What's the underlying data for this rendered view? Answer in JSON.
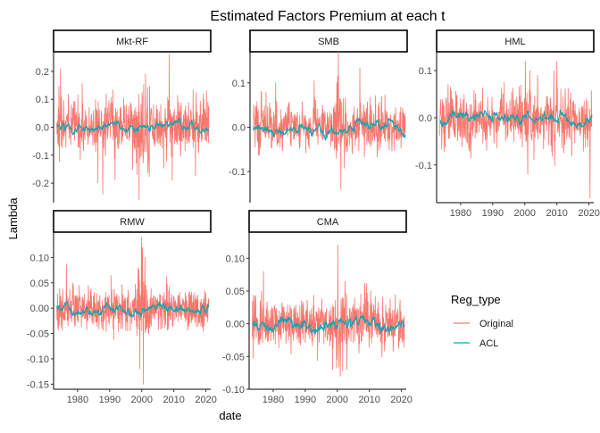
{
  "chart_data": {
    "type": "line",
    "title": "Estimated Factors Premium at each t",
    "xlabel": "date",
    "ylabel": "Lambda",
    "legend": {
      "title": "Reg_type",
      "placement": "right",
      "entries": [
        {
          "name": "Original",
          "color": "#F8766D"
        },
        {
          "name": "ACL",
          "color": "#00A9B5"
        }
      ]
    },
    "grid": false,
    "series_names": [
      "Original",
      "ACL"
    ],
    "xlim": [
      1972.5,
      2021.5
    ],
    "x_ticks": [
      1980,
      1990,
      2000,
      2010,
      2020
    ],
    "panels": [
      {
        "label": "Mkt-RF",
        "ylim": [
          -0.27,
          0.27
        ],
        "y_ticks": [
          -0.2,
          -0.1,
          0.0,
          0.1,
          0.2
        ],
        "y_tick_labels": [
          "-0.2",
          "-0.1",
          "0.0",
          "0.1",
          "0.2"
        ],
        "original": {
          "sd": 0.045,
          "spike_prob": 0.05,
          "spike_scale": 0.09,
          "phase": 0.3
        },
        "acl": {
          "sd": 0.008
        },
        "extremes": [
          [
            1987.8,
            -0.24
          ],
          [
            1999.2,
            -0.26
          ],
          [
            2008.6,
            0.26
          ],
          [
            1974.7,
            0.21
          ],
          [
            2001.2,
            0.19
          ],
          [
            2009.5,
            -0.19
          ],
          [
            2020.2,
            0.13
          ]
        ]
      },
      {
        "label": "SMB",
        "ylim": [
          -0.17,
          0.17
        ],
        "y_ticks": [
          -0.1,
          0.0,
          0.1
        ],
        "y_tick_labels": [
          "-0.1",
          "0.0",
          "0.1"
        ],
        "original": {
          "sd": 0.025,
          "spike_prob": 0.05,
          "spike_scale": 0.05,
          "phase": 1.1
        },
        "acl": {
          "sd": 0.006
        },
        "extremes": [
          [
            2000.1,
            0.17
          ],
          [
            2000.8,
            -0.14
          ],
          [
            1999.6,
            0.1
          ],
          [
            1976.0,
            0.08
          ],
          [
            1980.5,
            0.1
          ]
        ]
      },
      {
        "label": "HML",
        "ylim": [
          -0.18,
          0.14
        ],
        "y_ticks": [
          -0.1,
          0.0,
          0.1
        ],
        "y_tick_labels": [
          "-0.1",
          "0.0",
          "0.1"
        ],
        "original": {
          "sd": 0.025,
          "spike_prob": 0.05,
          "spike_scale": 0.05,
          "phase": 2.0
        },
        "acl": {
          "sd": 0.006
        },
        "extremes": [
          [
            2020.3,
            -0.17
          ],
          [
            2000.2,
            0.12
          ],
          [
            2000.9,
            -0.12
          ],
          [
            2009.1,
            0.1
          ],
          [
            2001.6,
            0.1
          ],
          [
            2004.0,
            0.09
          ]
        ]
      },
      {
        "label": "RMW",
        "ylim": [
          -0.16,
          0.15
        ],
        "y_ticks": [
          -0.15,
          -0.1,
          -0.05,
          0.0,
          0.05,
          0.1
        ],
        "y_tick_labels": [
          "-0.15",
          "-0.10",
          "-0.05",
          "0.00",
          "0.05",
          "0.10"
        ],
        "original": {
          "sd": 0.02,
          "spike_prob": 0.05,
          "spike_scale": 0.04,
          "phase": 0.7
        },
        "acl": {
          "sd": 0.005
        },
        "extremes": [
          [
            1999.9,
            0.14
          ],
          [
            2000.5,
            -0.15
          ],
          [
            2000.2,
            0.12
          ],
          [
            1999.4,
            -0.12
          ],
          [
            2001.0,
            0.1
          ]
        ]
      },
      {
        "label": "CMA",
        "ylim": [
          -0.1,
          0.14
        ],
        "y_ticks": [
          -0.1,
          -0.05,
          0.0,
          0.05,
          0.1
        ],
        "y_tick_labels": [
          "-0.10",
          "-0.05",
          "0.00",
          "0.05",
          "0.10"
        ],
        "original": {
          "sd": 0.018,
          "spike_prob": 0.05,
          "spike_scale": 0.03,
          "phase": 1.6
        },
        "acl": {
          "sd": 0.005
        },
        "extremes": [
          [
            2000.2,
            0.12
          ],
          [
            2000.9,
            -0.08
          ],
          [
            1977.0,
            0.08
          ],
          [
            1998.5,
            -0.07
          ],
          [
            2003.0,
            -0.07
          ]
        ]
      }
    ]
  }
}
